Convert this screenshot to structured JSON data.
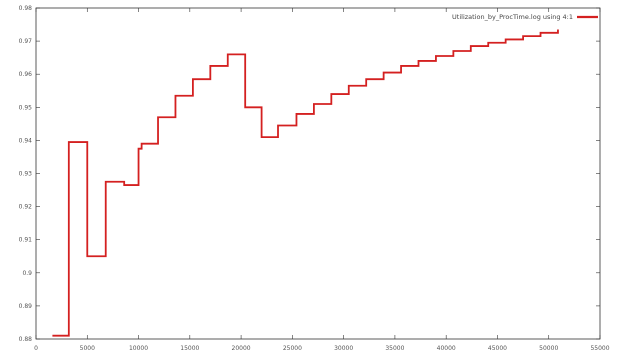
{
  "chart_data": {
    "type": "line",
    "title": "",
    "xlabel": "",
    "ylabel": "",
    "xlim": [
      0,
      55000
    ],
    "ylim": [
      0.88,
      0.98
    ],
    "grid": false,
    "legend_position": "top-right",
    "xticks": [
      0,
      5000,
      10000,
      15000,
      20000,
      25000,
      30000,
      35000,
      40000,
      45000,
      50000,
      55000
    ],
    "yticks": [
      0.88,
      0.89,
      0.9,
      0.91,
      0.92,
      0.93,
      0.94,
      0.95,
      0.96,
      0.97,
      0.98
    ],
    "xtick_labels": [
      "0",
      "5000",
      "10000",
      "15000",
      "20000",
      "25000",
      "30000",
      "35000",
      "40000",
      "45000",
      "50000",
      "55000"
    ],
    "ytick_labels": [
      "0.88",
      "0.89",
      "0.9",
      "0.91",
      "0.92",
      "0.93",
      "0.94",
      "0.95",
      "0.96",
      "0.97",
      "0.98"
    ],
    "series": [
      {
        "name": "Utilization_by_ProcTime.log  using 4:1",
        "color": "#d42020",
        "style": "steps",
        "x": [
          1600,
          3200,
          5000,
          6800,
          8600,
          10000,
          10300,
          11900,
          13600,
          15300,
          17000,
          18700,
          20400,
          22000,
          23600,
          25400,
          27100,
          28800,
          30500,
          32200,
          33900,
          35600,
          37300,
          39000,
          40700,
          42400,
          44100,
          45800,
          47500,
          49200,
          50900
        ],
        "y": [
          0.881,
          0.9395,
          0.905,
          0.9275,
          0.9265,
          0.9375,
          0.939,
          0.947,
          0.9535,
          0.9585,
          0.9625,
          0.966,
          0.95,
          0.941,
          0.9445,
          0.948,
          0.951,
          0.954,
          0.9565,
          0.9585,
          0.9605,
          0.9625,
          0.964,
          0.9655,
          0.967,
          0.9685,
          0.9695,
          0.9705,
          0.9715,
          0.9725,
          0.9735
        ]
      }
    ]
  }
}
